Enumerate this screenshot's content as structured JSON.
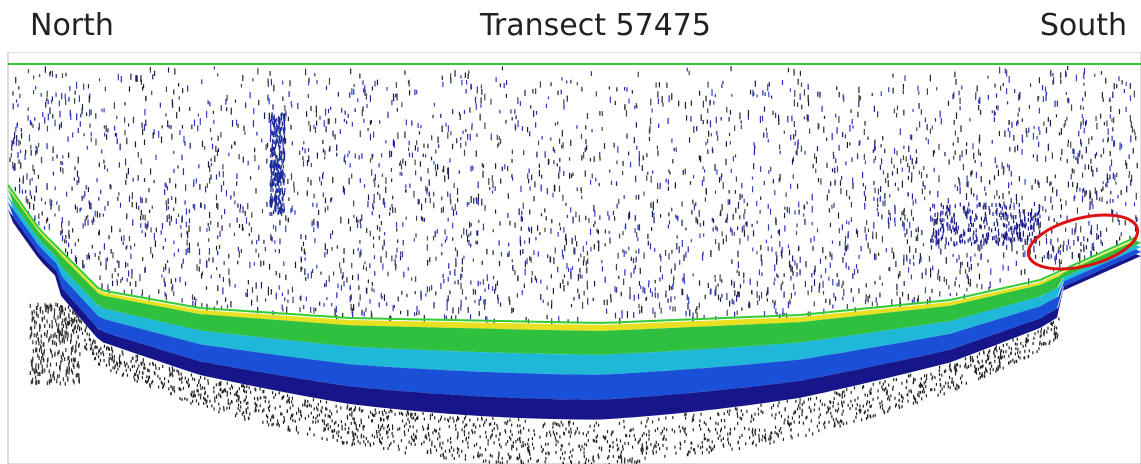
{
  "header": {
    "left": "North",
    "title": "Transect 57475",
    "right": "South"
  }
}
